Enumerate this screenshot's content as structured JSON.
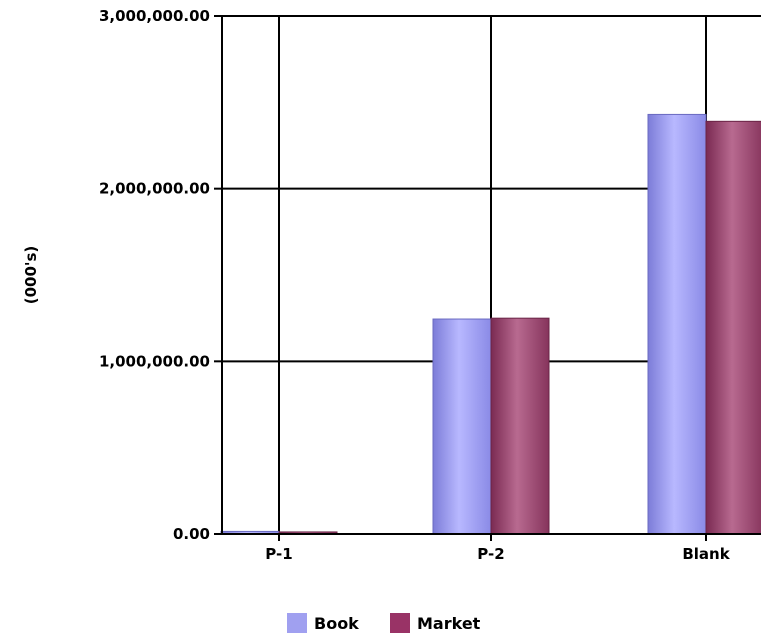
{
  "chart_data": {
    "type": "bar",
    "categories": [
      "P-1",
      "P-2",
      "Blank"
    ],
    "series": [
      {
        "name": "Book",
        "color": "#a0a0f0",
        "values": [
          15000,
          1245000,
          2430000
        ]
      },
      {
        "name": "Market",
        "color": "#993366",
        "values": [
          12000,
          1250000,
          2390000
        ]
      }
    ],
    "ylabel": "(000's)",
    "xlabel": "",
    "ylim": [
      0,
      3000000
    ],
    "yticks": [
      "0.00",
      "1,000,000.00",
      "2,000,000.00",
      "3,000,000.00"
    ],
    "ytick_values": [
      0,
      1000000,
      2000000,
      3000000
    ],
    "grid": true,
    "legend_position": "bottom"
  }
}
